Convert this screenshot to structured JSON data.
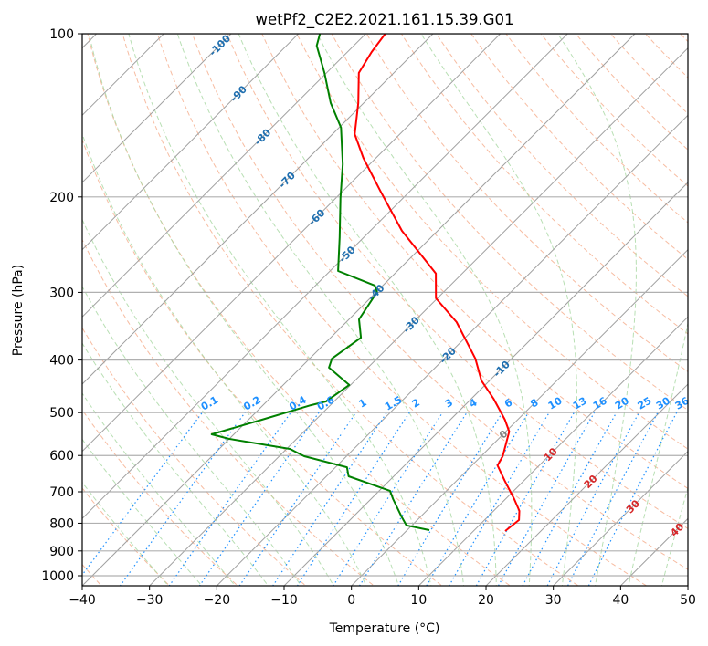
{
  "chart_data": {
    "type": "line",
    "subtype": "skew-t log-p",
    "title": "wetPf2_C2E2.2021.161.15.39.G01",
    "xlabel": "Temperature (°C)",
    "ylabel": "Pressure (hPa)",
    "xlim": [
      -40,
      50
    ],
    "ylim": [
      1050,
      100
    ],
    "x_ticks": [
      "−40",
      "−30",
      "−20",
      "−10",
      "0",
      "10",
      "20",
      "30",
      "40",
      "50"
    ],
    "x_tick_values": [
      -40,
      -30,
      -20,
      -10,
      0,
      10,
      20,
      30,
      40,
      50
    ],
    "y_ticks": [
      "100",
      "200",
      "300",
      "400",
      "500",
      "600",
      "700",
      "800",
      "900",
      "1000"
    ],
    "y_tick_values": [
      100,
      200,
      300,
      400,
      500,
      600,
      700,
      800,
      900,
      1000
    ],
    "grid": true,
    "series": [
      {
        "name": "temperature",
        "color": "#ff0000",
        "pressure": [
          100,
          108.1,
          118.1,
          134.2,
          153.2,
          169.4,
          195.5,
          231,
          254.5,
          277,
          307.7,
          340.4,
          397.4,
          436.5,
          471.4,
          515.4,
          542,
          601.7,
          625.8,
          668.6,
          722.1,
          759,
          789,
          827
        ],
        "temperature": [
          -77.1,
          -76.4,
          -75.2,
          -70.8,
          -66.7,
          -61.9,
          -54.3,
          -45.3,
          -39.2,
          -33.9,
          -30.2,
          -23.6,
          -15.4,
          -11.2,
          -6.7,
          -1.9,
          0.5,
          3.2,
          3.8,
          7.2,
          11.3,
          13.8,
          15.1,
          14.7
        ]
      },
      {
        "name": "dewpoint",
        "color": "#008000",
        "pressure": [
          100,
          105.2,
          118.1,
          134.2,
          149,
          174.1,
          201,
          237.4,
          274,
          291.4,
          299.6,
          336.5,
          363.7,
          397.4,
          413,
          444.6,
          477,
          484.5,
          515.4,
          548.3,
          558.8,
          583.5,
          601.7,
          630.6,
          655.5,
          697,
          722.1,
          780,
          807.5,
          823.7
        ],
        "temperature": [
          -86.8,
          -85.5,
          -80.3,
          -74.9,
          -69.7,
          -64.0,
          -59.3,
          -53.6,
          -48.8,
          -41.2,
          -39.9,
          -38.5,
          -35.5,
          -36.7,
          -35.8,
          -30.2,
          -31.2,
          -32.9,
          -38.0,
          -43.3,
          -40.1,
          -29.5,
          -26.3,
          -18.3,
          -16.7,
          -8.4,
          -6.7,
          -2.7,
          -0.8,
          3.3
        ]
      }
    ],
    "isotherm_labels": [
      "-100",
      "-90",
      "-80",
      "-70",
      "-60",
      "-50",
      "-40",
      "-30",
      "-20",
      "-10",
      "0",
      "10",
      "20",
      "30",
      "40"
    ],
    "isotherm_label_values": [
      -100,
      -90,
      -80,
      -70,
      -60,
      -50,
      -40,
      -30,
      -20,
      -10,
      0,
      10,
      20,
      30,
      40
    ],
    "mixing_ratio_labels": [
      "0.1",
      "0.2",
      "0.4",
      "0.6",
      "1",
      "1.5",
      "2",
      "3",
      "4",
      "6",
      "8",
      "10",
      "13",
      "16",
      "20",
      "25",
      "30",
      "36"
    ],
    "mixing_ratio_values": [
      0.1,
      0.2,
      0.4,
      0.6,
      1,
      1.5,
      2,
      3,
      4,
      6,
      8,
      10,
      13,
      16,
      20,
      25,
      30,
      36
    ],
    "colors": {
      "isotherm": "#a0a0a0",
      "dry_adiabat": "#f4a582",
      "moist_adiabat": "#a6d7a0",
      "mixing_ratio": "#1e90ff",
      "isotherm_label_cold": "#1f6fb0",
      "isotherm_label_zero": "#808080",
      "isotherm_label_warm": "#d62728"
    }
  }
}
